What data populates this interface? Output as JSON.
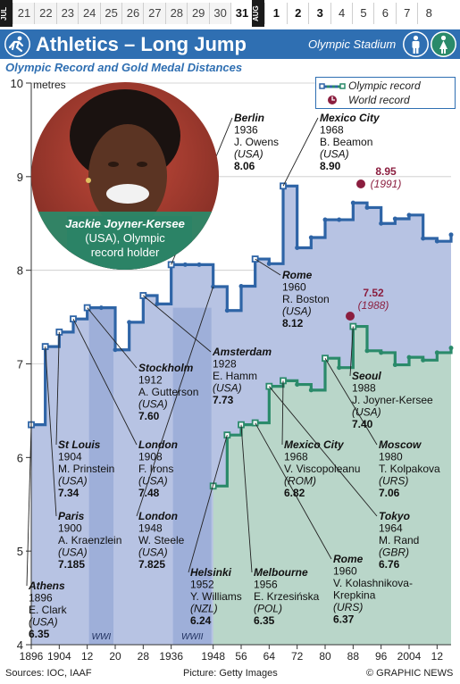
{
  "calendar": {
    "months": [
      "JUL",
      "AUG"
    ],
    "days_jul": [
      "21",
      "22",
      "23",
      "24",
      "25",
      "26",
      "27",
      "28",
      "29",
      "30",
      "31"
    ],
    "days_aug": [
      "1",
      "2",
      "3",
      "4",
      "5",
      "6",
      "7",
      "8"
    ]
  },
  "header": {
    "title": "Athletics – Long Jump",
    "venue": "Olympic Stadium",
    "subtitle": "Olympic Record and Gold Medal Distances"
  },
  "photo": {
    "name": "Jackie Joyner-Kersee",
    "caption_rest": "(USA), Olympic",
    "caption_line3": "record holder"
  },
  "legend": {
    "olympic_record": "Olympic record",
    "world_record": "World record"
  },
  "colors": {
    "men_line": "#2e64a6",
    "men_fill": "#b7c3e3",
    "women_line": "#2a8a6a",
    "women_fill": "#b9d6c9",
    "war_band": "#8b9fd1",
    "title_bar": "#2f6fb2",
    "world_record": "#8b1e3f"
  },
  "world_records": {
    "men": {
      "value": "8.95",
      "year": "(1991)"
    },
    "women": {
      "value": "7.52",
      "year": "(1988)"
    }
  },
  "war_labels": [
    "WWI",
    "WWII"
  ],
  "footer": {
    "sources": "Sources: IOC, IAAF",
    "picture": "Picture: Getty Images",
    "copyright": "© GRAPHIC NEWS"
  },
  "chart_data": {
    "type": "line",
    "ylabel": "metres",
    "ylim": [
      4,
      10
    ],
    "xlim": [
      1896,
      2016
    ],
    "y_ticks": [
      "4",
      "5",
      "6",
      "7",
      "8",
      "9",
      "10"
    ],
    "x_ticks": [
      {
        "v": 1896,
        "l": "1896"
      },
      {
        "v": 1904,
        "l": "1904"
      },
      {
        "v": 1912,
        "l": "12"
      },
      {
        "v": 1920,
        "l": "20"
      },
      {
        "v": 1928,
        "l": "28"
      },
      {
        "v": 1936,
        "l": "1936"
      },
      {
        "v": 1948,
        "l": "1948"
      },
      {
        "v": 1956,
        "l": "56"
      },
      {
        "v": 1964,
        "l": "64"
      },
      {
        "v": 1972,
        "l": "72"
      },
      {
        "v": 1980,
        "l": "80"
      },
      {
        "v": 1988,
        "l": "88"
      },
      {
        "v": 1996,
        "l": "96"
      },
      {
        "v": 2004,
        "l": "2004"
      },
      {
        "v": 2012,
        "l": "12"
      }
    ],
    "series": [
      {
        "name": "Men",
        "points": [
          [
            1896,
            6.35
          ],
          [
            1900,
            7.185
          ],
          [
            1904,
            7.34
          ],
          [
            1908,
            7.48
          ],
          [
            1912,
            7.6
          ],
          [
            1916,
            7.6
          ],
          [
            1920,
            7.15
          ],
          [
            1924,
            7.445
          ],
          [
            1928,
            7.73
          ],
          [
            1932,
            7.64
          ],
          [
            1936,
            8.06
          ],
          [
            1940,
            8.06
          ],
          [
            1944,
            8.06
          ],
          [
            1948,
            7.825
          ],
          [
            1952,
            7.57
          ],
          [
            1956,
            7.83
          ],
          [
            1960,
            8.12
          ],
          [
            1964,
            8.07
          ],
          [
            1968,
            8.9
          ],
          [
            1972,
            8.24
          ],
          [
            1976,
            8.35
          ],
          [
            1980,
            8.54
          ],
          [
            1984,
            8.54
          ],
          [
            1988,
            8.72
          ],
          [
            1992,
            8.67
          ],
          [
            1996,
            8.5
          ],
          [
            2000,
            8.55
          ],
          [
            2004,
            8.59
          ],
          [
            2008,
            8.34
          ],
          [
            2012,
            8.31
          ],
          [
            2016,
            8.38
          ]
        ],
        "record_years": [
          1896,
          1900,
          1904,
          1908,
          1912,
          1928,
          1936,
          1960,
          1968
        ]
      },
      {
        "name": "Women",
        "points": [
          [
            1948,
            5.695
          ],
          [
            1952,
            6.24
          ],
          [
            1956,
            6.35
          ],
          [
            1960,
            6.37
          ],
          [
            1964,
            6.76
          ],
          [
            1968,
            6.82
          ],
          [
            1972,
            6.78
          ],
          [
            1976,
            6.72
          ],
          [
            1980,
            7.06
          ],
          [
            1984,
            6.96
          ],
          [
            1988,
            7.4
          ],
          [
            1992,
            7.14
          ],
          [
            1996,
            7.12
          ],
          [
            2000,
            6.99
          ],
          [
            2004,
            7.07
          ],
          [
            2008,
            7.04
          ],
          [
            2012,
            7.12
          ],
          [
            2016,
            7.17
          ]
        ],
        "record_years": [
          1948,
          1952,
          1956,
          1960,
          1964,
          1968,
          1980,
          1988
        ]
      }
    ],
    "annotations": [
      {
        "city": "Athens",
        "year": "1896",
        "name": "E. Clark",
        "country": "(USA)",
        "value": "6.35"
      },
      {
        "city": "Paris",
        "year": "1900",
        "name": "A. Kraenzlein",
        "country": "(USA)",
        "value": "7.185"
      },
      {
        "city": "St Louis",
        "year": "1904",
        "name": "M. Prinstein",
        "country": "(USA)",
        "value": "7.34"
      },
      {
        "city": "London",
        "year": "1908",
        "name": "F. Irons",
        "country": "(USA)",
        "value": "7.48"
      },
      {
        "city": "Stockholm",
        "year": "1912",
        "name": "A. Gutterson",
        "country": "(USA)",
        "value": "7.60"
      },
      {
        "city": "Amsterdam",
        "year": "1928",
        "name": "E. Hamm",
        "country": "(USA)",
        "value": "7.73"
      },
      {
        "city": "Berlin",
        "year": "1936",
        "name": "J. Owens",
        "country": "(USA)",
        "value": "8.06"
      },
      {
        "city": "London",
        "year": "1948",
        "name": "W. Steele",
        "country": "(USA)",
        "value": "7.825"
      },
      {
        "city": "Rome",
        "year": "1960",
        "name": "R. Boston",
        "country": "(USA)",
        "value": "8.12"
      },
      {
        "city": "Mexico City",
        "year": "1968",
        "name": "B. Beamon",
        "country": "(USA)",
        "value": "8.90"
      },
      {
        "city": "Helsinki",
        "year": "1952",
        "name": "Y. Williams",
        "country": "(NZL)",
        "value": "6.24"
      },
      {
        "city": "Melbourne",
        "year": "1956",
        "name": "E. Krzesińska",
        "country": "(POL)",
        "value": "6.35"
      },
      {
        "city": "Rome",
        "year": "1960",
        "name": "V. Kolashnikova-",
        "name2": "Krepkina",
        "country": "(URS)",
        "value": "6.37"
      },
      {
        "city": "Tokyo",
        "year": "1964",
        "name": "M. Rand",
        "country": "(GBR)",
        "value": "6.76"
      },
      {
        "city": "Mexico City",
        "year": "1968",
        "name": "V. Viscopoleanu",
        "country": "(ROM)",
        "value": "6.82"
      },
      {
        "city": "Moscow",
        "year": "1980",
        "name": "T. Kolpakova",
        "country": "(URS)",
        "value": "7.06"
      },
      {
        "city": "Seoul",
        "year": "1988",
        "name": "J. Joyner-Kersee",
        "country": "(USA)",
        "value": "7.40"
      }
    ]
  }
}
